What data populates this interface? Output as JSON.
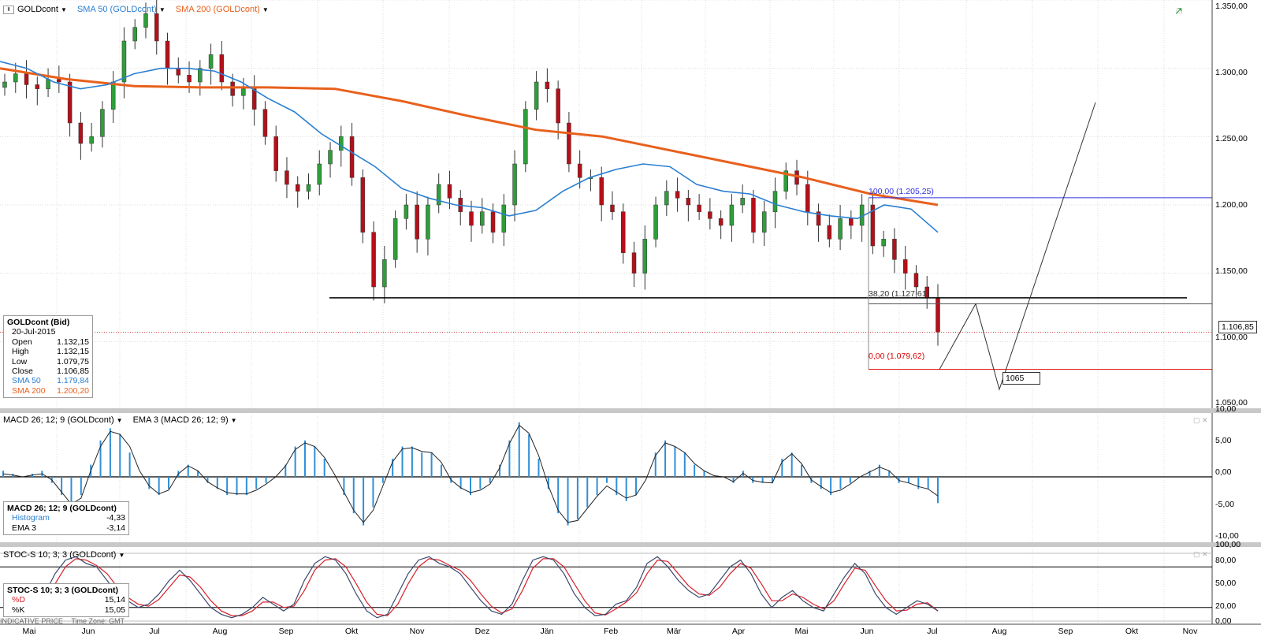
{
  "instrument_header": {
    "symbol": "GOLDcont",
    "sma50": "SMA 50 (GOLDcont)",
    "sma200": "SMA 200 (GOLDcont)"
  },
  "macd_header": {
    "macd": "MACD 26; 12; 9 (GOLDcont)",
    "ema": "EMA 3 (MACD 26; 12; 9)"
  },
  "stoch_header": {
    "stoch": "STOC-S 10; 3; 3 (GOLDcont)"
  },
  "info_panel": {
    "title": "GOLDcont (Bid)",
    "date": "20-Jul-2015",
    "rows": [
      {
        "label": "Open",
        "value": "1.132,15"
      },
      {
        "label": "High",
        "value": "1.132,15"
      },
      {
        "label": "Low",
        "value": "1.079,75"
      },
      {
        "label": "Close",
        "value": "1.106,85"
      },
      {
        "label": "SMA 50",
        "value": "1.179,84"
      },
      {
        "label": "SMA 200",
        "value": "1.200,20"
      }
    ]
  },
  "macd_info": {
    "title": "MACD 26; 12; 9 (GOLDcont)",
    "rows": [
      {
        "label": "Histogram",
        "value": "-4,33"
      },
      {
        "label": "EMA 3",
        "value": "-3,14"
      }
    ]
  },
  "stoch_info": {
    "title": "STOC-S 10; 3; 3 (GOLDcont)",
    "rows": [
      {
        "label": "%D",
        "value": "15,14"
      },
      {
        "label": "%K",
        "value": "15,05"
      }
    ]
  },
  "footer": {
    "indicative": "INDICATIVE PRICE",
    "timezone": "Time Zone: GMT"
  },
  "price_axis": [
    "1.350,00",
    "1.300,00",
    "1.250,00",
    "1.200,00",
    "1.150,00",
    "1.100,00",
    "1.050,00"
  ],
  "macd_axis": [
    "10,00",
    "5,00",
    "0,00",
    "-5,00",
    "-10,00"
  ],
  "stoch_axis": [
    "100,00",
    "80,00",
    "50,00",
    "20,00",
    "0,00"
  ],
  "months": [
    "Mai",
    "Jun",
    "Jul",
    "Aug",
    "Sep",
    "Okt",
    "Nov",
    "Dez",
    "Jän",
    "Feb",
    "Mär",
    "Apr",
    "Mai",
    "Jun",
    "Jul",
    "Aug",
    "Sep",
    "Okt",
    "Nov"
  ],
  "fib_labels": {
    "top": "100,00 (1.205,25)",
    "mid": "38,20 (1.127,61)",
    "bottom": "0,00 (1.079,62)"
  },
  "last_price_tag": "1.106,85",
  "target_tag": "1065",
  "colors": {
    "up": "#2e9e3a",
    "down": "#b3101a",
    "sma50": "#2a7fd1",
    "sma200": "#e8601c",
    "fib_top": "#3030e0",
    "fib_bottom": "#e00000",
    "macd_hist": "#2f8fd8",
    "stoch_d": "#d8202a",
    "stoch_k": "#3a4a6a"
  },
  "chart_data": {
    "type": "line",
    "ylim": [
      1050,
      1350
    ],
    "months": [
      "Mai",
      "Jun",
      "Jul",
      "Aug",
      "Sep",
      "Okt",
      "Nov",
      "Dez",
      "Jän",
      "Feb",
      "Mär",
      "Apr",
      "Mai",
      "Jun",
      "Jul",
      "Aug",
      "Sep",
      "Okt",
      "Nov"
    ],
    "close_series": [
      1290,
      1296,
      1288,
      1285,
      1292,
      1290,
      1260,
      1245,
      1250,
      1270,
      1290,
      1320,
      1330,
      1340,
      1320,
      1300,
      1295,
      1290,
      1300,
      1310,
      1290,
      1280,
      1285,
      1270,
      1250,
      1225,
      1215,
      1210,
      1215,
      1230,
      1240,
      1250,
      1220,
      1180,
      1140,
      1160,
      1190,
      1200,
      1175,
      1200,
      1215,
      1205,
      1195,
      1185,
      1195,
      1180,
      1200,
      1230,
      1270,
      1290,
      1285,
      1260,
      1230,
      1220,
      1220,
      1200,
      1195,
      1165,
      1150,
      1175,
      1200,
      1210,
      1205,
      1200,
      1195,
      1190,
      1185,
      1200,
      1205,
      1180,
      1195,
      1210,
      1225,
      1215,
      1195,
      1185,
      1175,
      1190,
      1185,
      1200,
      1170,
      1175,
      1160,
      1150,
      1140,
      1132,
      1107
    ],
    "sma50": [
      1305,
      1300,
      1290,
      1285,
      1288,
      1296,
      1300,
      1300,
      1298,
      1290,
      1278,
      1268,
      1252,
      1240,
      1228,
      1212,
      1205,
      1200,
      1198,
      1192,
      1196,
      1210,
      1220,
      1226,
      1230,
      1228,
      1215,
      1210,
      1208,
      1200,
      1195,
      1192,
      1190,
      1200,
      1197,
      1180
    ],
    "sma200": [
      1300,
      1292,
      1287,
      1286,
      1286,
      1285,
      1276,
      1265,
      1255,
      1250,
      1240,
      1230,
      1220,
      1208,
      1200
    ],
    "fib_levels": {
      "100": 1205.25,
      "38.2": 1127.61,
      "0": 1079.62
    },
    "projection": [
      1079.62,
      1127.61,
      1065,
      1275
    ],
    "support_level": 1132,
    "last_close": 1106.85,
    "target": 1065,
    "macd_ylim": [
      -10,
      10
    ],
    "macd_hist": [
      1,
      0.5,
      0,
      0.5,
      1,
      -1,
      -3,
      -5,
      -3,
      2,
      6,
      8,
      7,
      4,
      0,
      -2,
      -3,
      -2,
      1,
      2,
      1,
      -1,
      -2,
      -3,
      -3,
      -3,
      -2,
      -1,
      0,
      2,
      5,
      6,
      5,
      3,
      0,
      -3,
      -6,
      -8,
      -5,
      -1,
      3,
      5,
      5,
      4,
      4,
      2,
      -1,
      -2,
      -3,
      -2,
      -1,
      2,
      6,
      9,
      7,
      3,
      -2,
      -6,
      -8,
      -7,
      -5,
      -3,
      -1,
      -3,
      -4,
      -3,
      0,
      4,
      6,
      5,
      4,
      2,
      1,
      0,
      0,
      -1,
      1,
      -1,
      -1,
      -1,
      3,
      4,
      2,
      -1,
      -2,
      -3,
      -2,
      -1,
      0,
      1,
      2,
      1,
      -1,
      -1,
      -2,
      -2,
      -4.33
    ],
    "macd_ema": [
      0.5,
      0.3,
      0,
      0.3,
      0.5,
      -0.5,
      -2.5,
      -4.5,
      -3.5,
      1,
      5,
      7.5,
      7,
      5,
      1,
      -1.5,
      -2.8,
      -2.2,
      0.5,
      1.8,
      1,
      -0.8,
      -1.8,
      -2.6,
      -2.8,
      -2.8,
      -2.2,
      -1.2,
      0,
      1.8,
      4.5,
      5.6,
      5,
      3.2,
      0.5,
      -2.5,
      -5.5,
      -7.5,
      -5.5,
      -1.5,
      2.5,
      4.6,
      4.8,
      4.2,
      4,
      2.4,
      -0.5,
      -1.8,
      -2.6,
      -2.2,
      -1.2,
      1.5,
      5.5,
      8.5,
      7.2,
      3.5,
      -1.5,
      -5.5,
      -7.5,
      -7.2,
      -5.2,
      -3.2,
      -1.5,
      -2.5,
      -3.5,
      -3,
      -0.5,
      3.5,
      5.6,
      5,
      4,
      2.2,
      1,
      0.2,
      0,
      -0.8,
      0.6,
      -0.6,
      -0.9,
      -1,
      2.5,
      3.8,
      2.2,
      -0.5,
      -1.6,
      -2.6,
      -2.2,
      -1.2,
      0,
      0.8,
      1.6,
      1,
      -0.6,
      -1,
      -1.6,
      -2,
      -3.14
    ],
    "stoch_ylim": [
      0,
      100
    ],
    "stoch_k": [
      30,
      20,
      10,
      15,
      40,
      70,
      90,
      95,
      85,
      80,
      60,
      40,
      30,
      20,
      25,
      40,
      60,
      75,
      60,
      40,
      20,
      10,
      5,
      10,
      20,
      35,
      25,
      15,
      25,
      60,
      85,
      95,
      90,
      70,
      40,
      15,
      5,
      10,
      40,
      70,
      90,
      95,
      85,
      80,
      70,
      50,
      30,
      15,
      10,
      25,
      60,
      90,
      95,
      90,
      70,
      40,
      20,
      8,
      10,
      25,
      30,
      50,
      85,
      95,
      80,
      60,
      45,
      35,
      40,
      60,
      80,
      90,
      70,
      40,
      20,
      35,
      45,
      30,
      20,
      15,
      40,
      65,
      85,
      70,
      40,
      20,
      10,
      20,
      30,
      25,
      15
    ],
    "stoch_d": [
      35,
      25,
      15,
      12,
      30,
      55,
      80,
      92,
      90,
      82,
      70,
      50,
      35,
      25,
      22,
      32,
      50,
      68,
      65,
      50,
      30,
      15,
      8,
      8,
      15,
      28,
      28,
      20,
      22,
      45,
      75,
      90,
      92,
      80,
      55,
      28,
      10,
      8,
      25,
      55,
      80,
      92,
      90,
      82,
      75,
      60,
      40,
      22,
      12,
      18,
      45,
      78,
      92,
      92,
      80,
      55,
      30,
      12,
      9,
      18,
      28,
      42,
      70,
      90,
      88,
      70,
      52,
      40,
      38,
      50,
      70,
      85,
      78,
      55,
      30,
      30,
      40,
      35,
      25,
      18,
      30,
      55,
      78,
      75,
      52,
      30,
      15,
      16,
      25,
      27,
      15.14
    ]
  }
}
